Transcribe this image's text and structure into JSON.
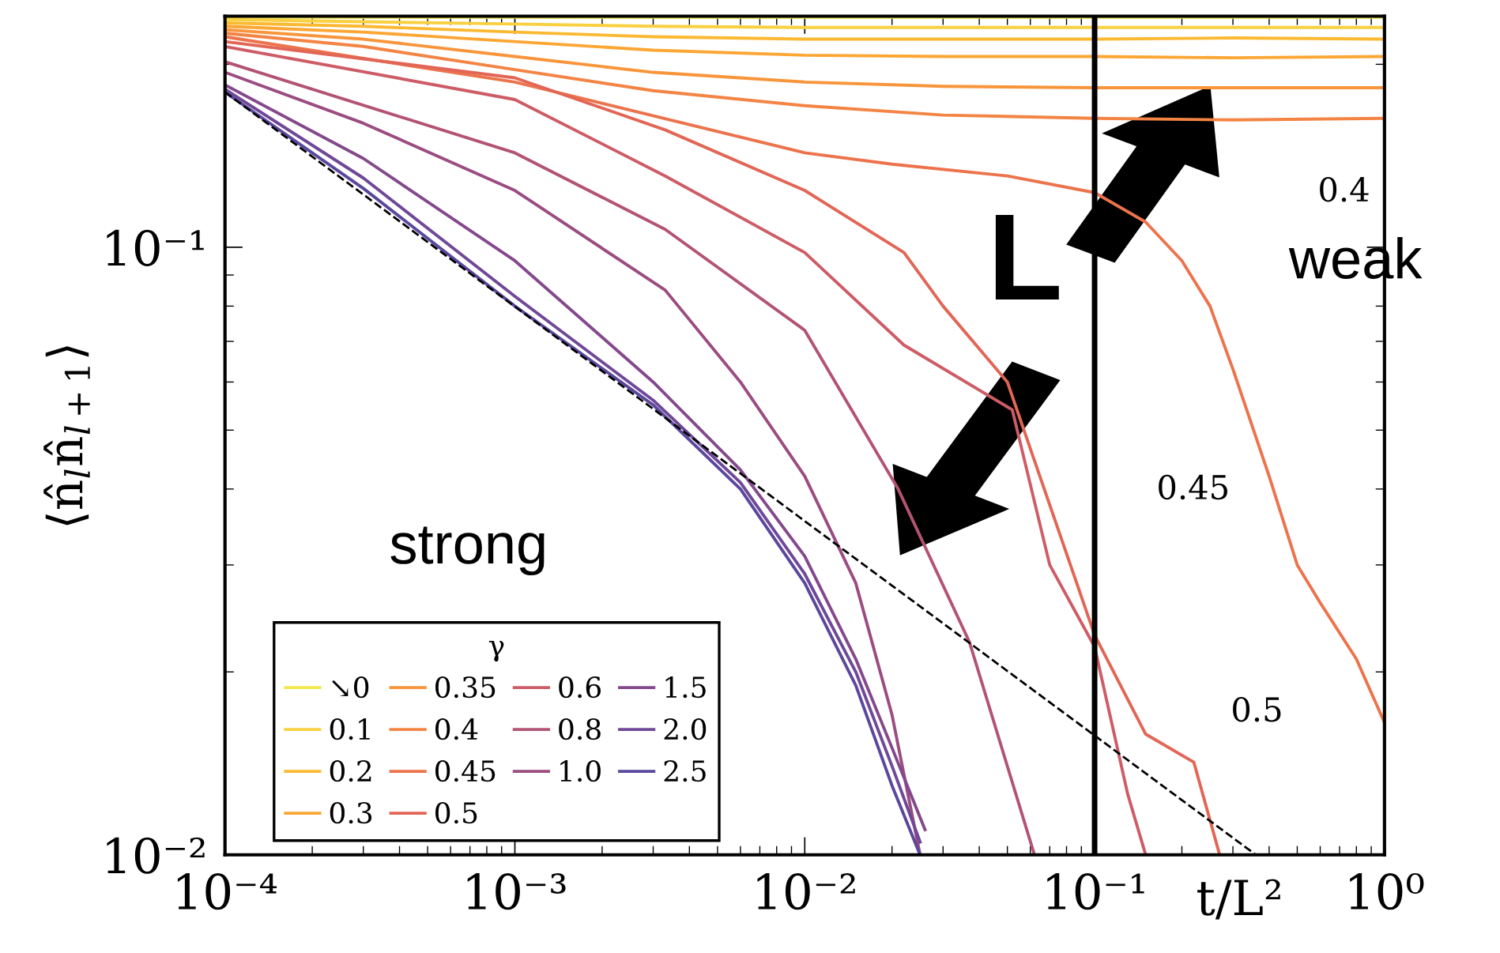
{
  "chart_data": {
    "type": "line",
    "xlabel": "t/L²",
    "ylabel": "⟨n̂$_{l}$n̂$_{l+1}$⟩",
    "legend_title": "γ",
    "log": "xy",
    "grid": false,
    "legend": "bottom left",
    "marker": "none",
    "line_style": "solid",
    "xlim": [
      0.0001,
      1
    ],
    "ylim": [
      0.01,
      0.24
    ],
    "xticks": [
      {
        "value": 0.0001,
        "label": "10⁻⁴"
      },
      {
        "value": 0.001,
        "label": "10⁻³"
      },
      {
        "value": 0.01,
        "label": "10⁻²"
      },
      {
        "value": 0.1,
        "label": "10⁻¹"
      },
      {
        "value": 1,
        "label": "10⁰"
      }
    ],
    "yticks": [
      {
        "value": 0.01,
        "label": "10⁻²"
      },
      {
        "value": 0.1,
        "label": "10⁻¹"
      }
    ],
    "ref_lines": [
      {
        "axis": "x",
        "value": 0.1,
        "color": "#000000",
        "line_style": "solid"
      }
    ],
    "annotations": [
      "L",
      "weak",
      "strong",
      "0.4",
      "0.45",
      "0.5"
    ],
    "series": [
      {
        "name": "↘0",
        "color": "#f3e94c",
        "x": [
          0.0001,
          0.0003,
          0.001,
          0.003,
          0.01,
          0.03,
          0.1,
          0.3,
          1
        ],
        "values": [
          0.239,
          0.239,
          0.239,
          0.239,
          0.239,
          0.239,
          0.239,
          0.239,
          0.239
        ]
      },
      {
        "name": "0.1",
        "color": "#f8d040",
        "x": [
          0.0001,
          0.0003,
          0.001,
          0.003,
          0.01,
          0.03,
          0.1,
          0.3,
          1
        ],
        "values": [
          0.237,
          0.235,
          0.233,
          0.231,
          0.23,
          0.23,
          0.23,
          0.23,
          0.23
        ]
      },
      {
        "name": "0.2",
        "color": "#fbb932",
        "x": [
          0.0001,
          0.0003,
          0.001,
          0.003,
          0.01,
          0.03,
          0.1,
          0.3,
          1
        ],
        "values": [
          0.234,
          0.231,
          0.226,
          0.222,
          0.22,
          0.22,
          0.22,
          0.221,
          0.22
        ]
      },
      {
        "name": "0.3",
        "color": "#fca634",
        "x": [
          0.0001,
          0.0003,
          0.001,
          0.003,
          0.01,
          0.03,
          0.1,
          0.3,
          1
        ],
        "values": [
          0.231,
          0.226,
          0.218,
          0.211,
          0.207,
          0.206,
          0.206,
          0.205,
          0.206
        ]
      },
      {
        "name": "0.35",
        "color": "#f8953b",
        "x": [
          0.0001,
          0.0003,
          0.001,
          0.003,
          0.01,
          0.03,
          0.1,
          0.3,
          1
        ],
        "values": [
          0.228,
          0.22,
          0.206,
          0.194,
          0.187,
          0.184,
          0.183,
          0.183,
          0.183
        ]
      },
      {
        "name": "0.4",
        "color": "#f38444",
        "x": [
          0.0001,
          0.0003,
          0.001,
          0.003,
          0.01,
          0.03,
          0.1,
          0.3,
          1
        ],
        "values": [
          0.225,
          0.214,
          0.196,
          0.181,
          0.171,
          0.165,
          0.163,
          0.162,
          0.163
        ]
      },
      {
        "name": "0.45",
        "color": "#ec734c",
        "x": [
          0.0001,
          0.001,
          0.01,
          0.02,
          0.05,
          0.1,
          0.15,
          0.2,
          0.25,
          0.3,
          0.4,
          0.5,
          0.6,
          0.8,
          1
        ],
        "values": [
          0.222,
          0.187,
          0.143,
          0.137,
          0.131,
          0.123,
          0.11,
          0.095,
          0.08,
          0.063,
          0.042,
          0.03,
          0.026,
          0.021,
          0.0165
        ]
      },
      {
        "name": "0.5",
        "color": "#e26656",
        "x": [
          0.0001,
          0.001,
          0.0033,
          0.01,
          0.022,
          0.03,
          0.05,
          0.1,
          0.15,
          0.22,
          0.27
        ],
        "values": [
          0.218,
          0.19,
          0.156,
          0.124,
          0.098,
          0.08,
          0.06,
          0.023,
          0.0158,
          0.0142,
          0.01
        ]
      },
      {
        "name": "0.6",
        "color": "#cd5c66",
        "x": [
          0.0001,
          0.001,
          0.0033,
          0.01,
          0.022,
          0.052,
          0.07,
          0.1,
          0.13,
          0.15
        ],
        "values": [
          0.214,
          0.175,
          0.131,
          0.098,
          0.069,
          0.054,
          0.03,
          0.022,
          0.0126,
          0.01
        ]
      },
      {
        "name": "0.8",
        "color": "#b35373",
        "x": [
          0.0001,
          0.001,
          0.0033,
          0.01,
          0.021,
          0.037,
          0.062
        ],
        "values": [
          0.202,
          0.143,
          0.107,
          0.073,
          0.04,
          0.0224,
          0.01
        ]
      },
      {
        "name": "1.0",
        "color": "#9b4c80",
        "x": [
          0.0001,
          0.0003,
          0.001,
          0.0033,
          0.006,
          0.01,
          0.015,
          0.02,
          0.025
        ],
        "values": [
          0.194,
          0.16,
          0.124,
          0.085,
          0.06,
          0.042,
          0.028,
          0.017,
          0.01
        ]
      },
      {
        "name": "1.5",
        "color": "#84498c",
        "x": [
          0.0001,
          0.0003,
          0.001,
          0.003,
          0.006,
          0.01,
          0.015,
          0.02,
          0.026
        ],
        "values": [
          0.185,
          0.14,
          0.095,
          0.06,
          0.043,
          0.031,
          0.021,
          0.015,
          0.011
        ]
      },
      {
        "name": "2.0",
        "color": "#6f4897",
        "x": [
          0.0001,
          0.0003,
          0.001,
          0.003,
          0.006,
          0.01,
          0.015,
          0.02,
          0.025
        ],
        "values": [
          0.182,
          0.13,
          0.083,
          0.056,
          0.041,
          0.029,
          0.02,
          0.014,
          0.0105
        ]
      },
      {
        "name": "2.5",
        "color": "#5b479e",
        "x": [
          0.0001,
          0.0003,
          0.001,
          0.003,
          0.006,
          0.01,
          0.015,
          0.02,
          0.025
        ],
        "values": [
          0.18,
          0.125,
          0.08,
          0.055,
          0.04,
          0.028,
          0.019,
          0.013,
          0.01
        ]
      },
      {
        "type": "line",
        "color": "#000000",
        "line_style": "dashed",
        "x": [
          0.0001,
          0.36
        ],
        "values": [
          0.18,
          0.01
        ]
      }
    ]
  }
}
